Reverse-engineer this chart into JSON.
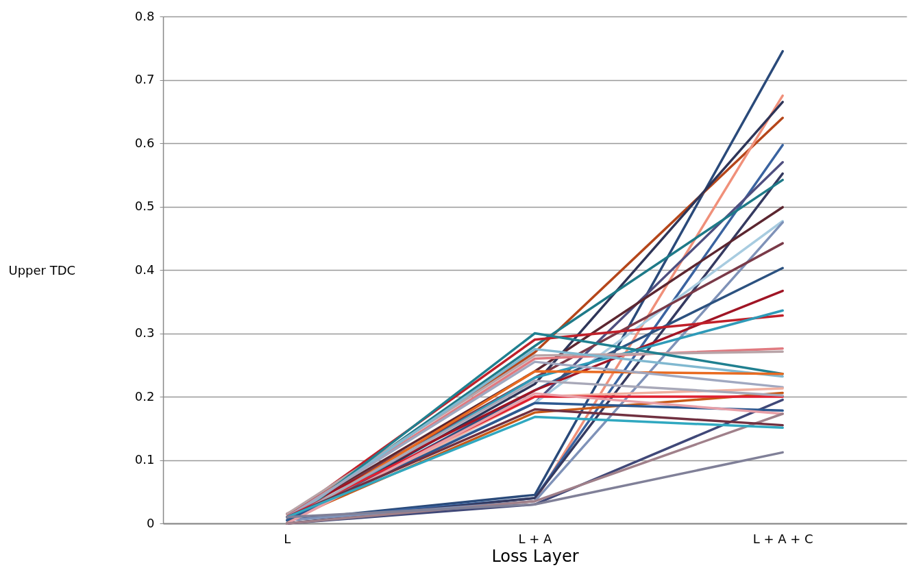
{
  "chart_data": {
    "type": "line",
    "xlabel": "Loss Layer",
    "ylabel": "Upper TDC",
    "categories": [
      "L",
      "L + A",
      "L + A + C"
    ],
    "ylim": [
      0,
      0.8
    ],
    "yticks": [
      0,
      0.1,
      0.2,
      0.3,
      0.4,
      0.5,
      0.6,
      0.7,
      0.8
    ],
    "grid": "y",
    "legend": false,
    "marker": "none",
    "line_style": "solid",
    "series": [
      {
        "color": "#2a4a7a",
        "values": [
          0.005,
          0.045,
          0.745
        ]
      },
      {
        "color": "#b5461a",
        "values": [
          0.01,
          0.27,
          0.64
        ]
      },
      {
        "color": "#f0907a",
        "values": [
          0.0,
          0.035,
          0.675
        ]
      },
      {
        "color": "#2e3558",
        "values": [
          0.0,
          0.22,
          0.665
        ]
      },
      {
        "color": "#3a63a0",
        "values": [
          0.005,
          0.04,
          0.597
        ]
      },
      {
        "color": "#4f4f80",
        "values": [
          0.005,
          0.19,
          0.57
        ]
      },
      {
        "color": "#353a60",
        "values": [
          0.0,
          0.04,
          0.552
        ]
      },
      {
        "color": "#1e7a88",
        "values": [
          0.005,
          0.28,
          0.542
        ]
      },
      {
        "color": "#5c2630",
        "values": [
          0.01,
          0.24,
          0.499
        ]
      },
      {
        "color": "#a8cce0",
        "values": [
          0.01,
          0.19,
          0.477
        ]
      },
      {
        "color": "#7f92b8",
        "values": [
          0.005,
          0.035,
          0.475
        ]
      },
      {
        "color": "#7a3a48",
        "values": [
          0.01,
          0.23,
          0.442
        ]
      },
      {
        "color": "#2c5280",
        "values": [
          0.0,
          0.21,
          0.403
        ]
      },
      {
        "color": "#a01525",
        "values": [
          0.015,
          0.21,
          0.367
        ]
      },
      {
        "color": "#c0202a",
        "values": [
          0.01,
          0.29,
          0.328
        ]
      },
      {
        "color": "#2e9ab8",
        "values": [
          0.0,
          0.23,
          0.336
        ]
      },
      {
        "color": "#e07a80",
        "values": [
          0.01,
          0.26,
          0.276
        ]
      },
      {
        "color": "#b8a4a8",
        "values": [
          0.015,
          0.265,
          0.271
        ]
      },
      {
        "color": "#208090",
        "values": [
          0.0,
          0.3,
          0.236
        ]
      },
      {
        "color": "#80b8d0",
        "values": [
          0.005,
          0.275,
          0.232
        ]
      },
      {
        "color": "#e86a20",
        "values": [
          0.0,
          0.24,
          0.236
        ]
      },
      {
        "color": "#a0a8c0",
        "values": [
          0.01,
          0.255,
          0.215
        ]
      },
      {
        "color": "#f0b0a0",
        "values": [
          0.0,
          0.2,
          0.213
        ]
      },
      {
        "color": "#c85a18",
        "values": [
          0.005,
          0.175,
          0.206
        ]
      },
      {
        "color": "#e02030",
        "values": [
          0.01,
          0.2,
          0.2
        ]
      },
      {
        "color": "#a8a8b8",
        "values": [
          0.005,
          0.225,
          0.202
        ]
      },
      {
        "color": "#404878",
        "values": [
          0.0,
          0.03,
          0.195
        ]
      },
      {
        "color": "#2c5890",
        "values": [
          0.005,
          0.19,
          0.178
        ]
      },
      {
        "color": "#e8a0a8",
        "values": [
          0.0,
          0.205,
          0.173
        ]
      },
      {
        "color": "#a0808a",
        "values": [
          0.0,
          0.035,
          0.173
        ]
      },
      {
        "color": "#703040",
        "values": [
          0.01,
          0.18,
          0.155
        ]
      },
      {
        "color": "#30a8c0",
        "values": [
          0.01,
          0.168,
          0.151
        ]
      },
      {
        "color": "#808098",
        "values": [
          0.01,
          0.03,
          0.112
        ]
      }
    ]
  }
}
